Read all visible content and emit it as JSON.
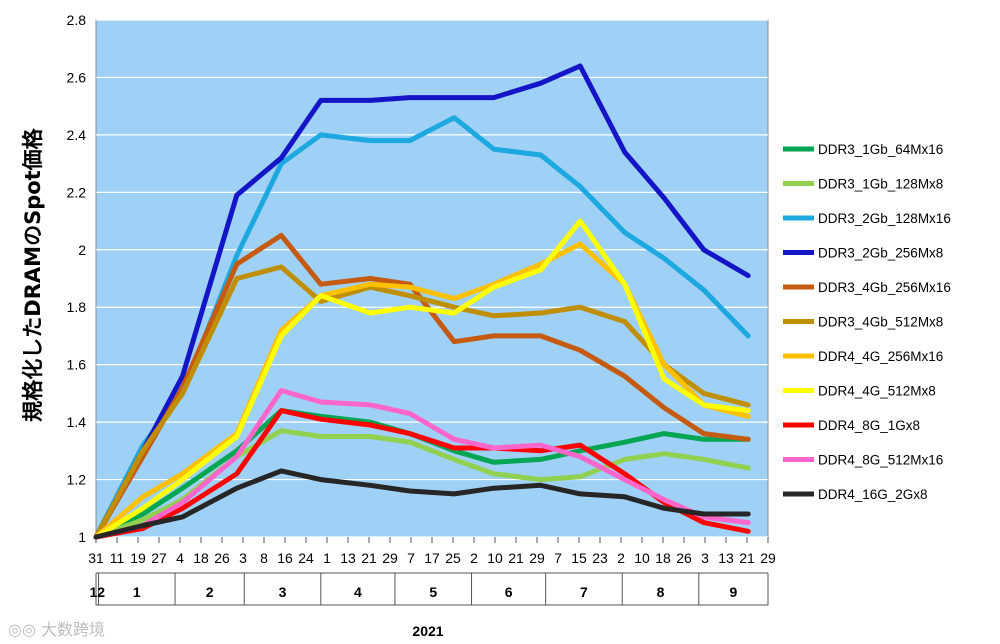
{
  "chart_data": {
    "type": "line",
    "ylabel": "規格化したDRAMのSpot価格",
    "ylim": [
      1,
      2.8
    ],
    "yticks": [
      "1",
      "1.2",
      "1.4",
      "1.6",
      "1.8",
      "2",
      "2.2",
      "2.4",
      "2.6",
      "2.8"
    ],
    "day_ticks": [
      "31",
      "11",
      "19",
      "27",
      "4",
      "18",
      "26",
      "3",
      "8",
      "16",
      "24",
      "1",
      "13",
      "21",
      "29",
      "7",
      "17",
      "25",
      "2",
      "10",
      "21",
      "29",
      "7",
      "15",
      "23",
      "2",
      "10",
      "18",
      "26",
      "3",
      "13",
      "21",
      "29"
    ],
    "month_labels": [
      "12",
      "1",
      "2",
      "3",
      "4",
      "5",
      "6",
      "7",
      "8",
      "9"
    ],
    "year_label": "2021",
    "grid": true,
    "legend_position": "right",
    "x": [
      "2020-12-31",
      "2021-01-19",
      "2021-02-04",
      "2021-02-26",
      "2021-03-16",
      "2021-04-01",
      "2021-04-21",
      "2021-05-07",
      "2021-05-25",
      "2021-06-10",
      "2021-06-29",
      "2021-07-15",
      "2021-08-02",
      "2021-08-18",
      "2021-09-03",
      "2021-09-21"
    ],
    "series": [
      {
        "name": "DDR3_1Gb_64Mx16",
        "color": "#00a651",
        "values": [
          1.0,
          1.08,
          1.17,
          1.3,
          1.44,
          1.42,
          1.4,
          1.36,
          1.3,
          1.26,
          1.27,
          1.3,
          1.33,
          1.36,
          1.34,
          1.34
        ]
      },
      {
        "name": "DDR3_1Gb_128Mx8",
        "color": "#92d050",
        "values": [
          1.0,
          1.06,
          1.13,
          1.28,
          1.37,
          1.35,
          1.35,
          1.33,
          1.27,
          1.22,
          1.2,
          1.21,
          1.27,
          1.29,
          1.27,
          1.24
        ]
      },
      {
        "name": "DDR3_2Gb_128Mx16",
        "color": "#1ea8e0",
        "values": [
          1.0,
          1.32,
          1.5,
          1.98,
          2.3,
          2.4,
          2.38,
          2.38,
          2.46,
          2.35,
          2.33,
          2.22,
          2.06,
          1.97,
          1.86,
          1.7
        ]
      },
      {
        "name": "DDR3_2Gb_256Mx8",
        "color": "#1515c8",
        "values": [
          1.0,
          1.3,
          1.56,
          2.19,
          2.32,
          2.52,
          2.52,
          2.53,
          2.53,
          2.53,
          2.58,
          2.64,
          2.34,
          2.18,
          2.0,
          1.91
        ]
      },
      {
        "name": "DDR3_4Gb_256Mx16",
        "color": "#c55a11",
        "values": [
          1.0,
          1.28,
          1.52,
          1.95,
          2.05,
          1.88,
          1.9,
          1.88,
          1.68,
          1.7,
          1.7,
          1.65,
          1.56,
          1.45,
          1.36,
          1.34
        ]
      },
      {
        "name": "DDR3_4Gb_512Mx8",
        "color": "#bf8f00",
        "values": [
          1.0,
          1.3,
          1.5,
          1.9,
          1.94,
          1.82,
          1.87,
          1.84,
          1.8,
          1.77,
          1.78,
          1.8,
          1.75,
          1.6,
          1.5,
          1.46
        ]
      },
      {
        "name": "DDR4_4G_256Mx16",
        "color": "#ffc000",
        "values": [
          1.0,
          1.14,
          1.22,
          1.36,
          1.72,
          1.84,
          1.88,
          1.87,
          1.83,
          1.88,
          1.95,
          2.02,
          1.88,
          1.6,
          1.46,
          1.42
        ]
      },
      {
        "name": "DDR4_4G_512Mx8",
        "color": "#ffff00",
        "values": [
          1.0,
          1.1,
          1.2,
          1.35,
          1.7,
          1.84,
          1.78,
          1.8,
          1.78,
          1.87,
          1.93,
          2.1,
          1.88,
          1.55,
          1.46,
          1.44
        ]
      },
      {
        "name": "DDR4_8G_1Gx8",
        "color": "#ff0000",
        "values": [
          1.0,
          1.03,
          1.1,
          1.22,
          1.44,
          1.41,
          1.39,
          1.36,
          1.31,
          1.31,
          1.3,
          1.32,
          1.22,
          1.12,
          1.05,
          1.02
        ]
      },
      {
        "name": "DDR4_8G_512Mx16",
        "color": "#ff66cc",
        "values": [
          1.0,
          1.04,
          1.12,
          1.28,
          1.51,
          1.47,
          1.46,
          1.43,
          1.34,
          1.31,
          1.32,
          1.28,
          1.2,
          1.13,
          1.07,
          1.05
        ]
      },
      {
        "name": "DDR4_16G_2Gx8",
        "color": "#262626",
        "values": [
          1.0,
          1.04,
          1.07,
          1.17,
          1.23,
          1.2,
          1.18,
          1.16,
          1.15,
          1.17,
          1.18,
          1.15,
          1.14,
          1.1,
          1.08,
          1.08
        ]
      }
    ]
  },
  "watermark": "大数跨境"
}
